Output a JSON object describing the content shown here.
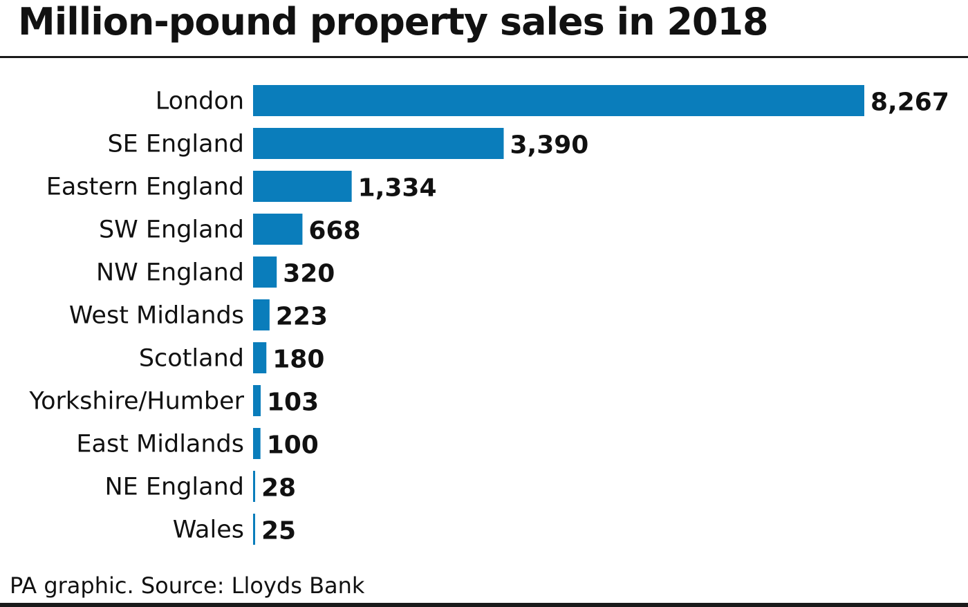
{
  "chart_data": {
    "type": "bar",
    "orientation": "horizontal",
    "title": "Million-pound property sales in 2018",
    "categories": [
      "London",
      "SE England",
      "Eastern England",
      "SW England",
      "NW England",
      "West Midlands",
      "Scotland",
      "Yorkshire/Humber",
      "East Midlands",
      "NE England",
      "Wales"
    ],
    "values": [
      8267,
      3390,
      1334,
      668,
      320,
      223,
      180,
      103,
      100,
      28,
      25
    ],
    "value_labels": [
      "8,267",
      "3,390",
      "1,334",
      "668",
      "320",
      "223",
      "180",
      "103",
      "100",
      "28",
      "25"
    ],
    "xlabel": "",
    "ylabel": "",
    "xlim": [
      0,
      8267
    ],
    "grid": false,
    "legend": "none",
    "bar_color": "#0a7dbb",
    "source": "PA graphic. Source: Lloyds Bank"
  }
}
